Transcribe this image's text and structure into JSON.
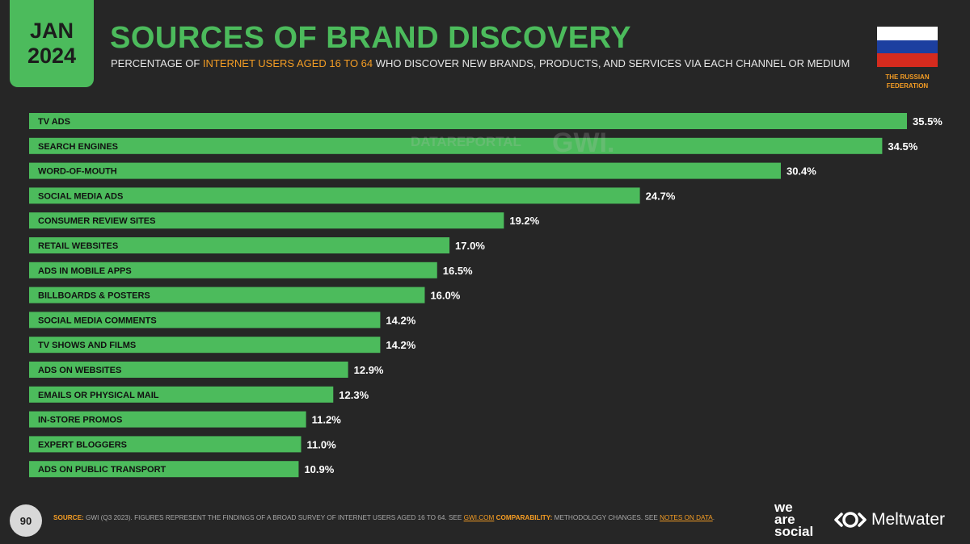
{
  "header": {
    "date_month": "JAN",
    "date_year": "2024",
    "title": "SOURCES OF BRAND DISCOVERY",
    "subtitle_pre": "PERCENTAGE OF ",
    "subtitle_highlight": "INTERNET USERS AGED 16 TO 64",
    "subtitle_post": " WHO DISCOVER NEW BRANDS, PRODUCTS, AND SERVICES VIA EACH CHANNEL OR MEDIUM"
  },
  "country": {
    "line1": "THE RUSSIAN",
    "line2": "FEDERATION",
    "flag_colors": [
      "#ffffff",
      "#1c3fa0",
      "#d52b1e"
    ]
  },
  "watermarks": {
    "datareportal": "DATAREPORTAL",
    "gwi": "GWI."
  },
  "colors": {
    "background": "#262626",
    "accent_green": "#4cbb5c",
    "accent_orange": "#f39c24",
    "label_text": "#111111",
    "value_text": "#ffffff"
  },
  "chart_data": {
    "type": "bar",
    "orientation": "horizontal",
    "categories": [
      "TV ADS",
      "SEARCH ENGINES",
      "WORD-OF-MOUTH",
      "SOCIAL MEDIA ADS",
      "CONSUMER REVIEW SITES",
      "RETAIL WEBSITES",
      "ADS IN MOBILE APPS",
      "BILLBOARDS & POSTERS",
      "SOCIAL MEDIA COMMENTS",
      "TV SHOWS AND FILMS",
      "ADS ON WEBSITES",
      "EMAILS OR PHYSICAL MAIL",
      "IN-STORE PROMOS",
      "EXPERT BLOGGERS",
      "ADS ON PUBLIC TRANSPORT"
    ],
    "values": [
      35.5,
      34.5,
      30.4,
      24.7,
      19.2,
      17.0,
      16.5,
      16.0,
      14.2,
      14.2,
      12.9,
      12.3,
      11.2,
      11.0,
      10.9
    ],
    "value_labels": [
      "35.5%",
      "34.5%",
      "30.4%",
      "24.7%",
      "19.2%",
      "17.0%",
      "16.5%",
      "16.0%",
      "14.2%",
      "14.2%",
      "12.9%",
      "12.3%",
      "11.2%",
      "11.0%",
      "10.9%"
    ],
    "xlim": [
      0,
      35.5
    ],
    "grid": false,
    "legend": "none"
  },
  "footer": {
    "page_number": "90",
    "source_label": "SOURCE:",
    "source_text": " GWI (Q3 2023). FIGURES REPRESENT THE FINDINGS OF A BROAD SURVEY OF INTERNET USERS AGED 16 TO 64. SEE ",
    "source_link": "GWI.COM",
    "comparability_label": " COMPARABILITY:",
    "comparability_text": " METHODOLOGY CHANGES. SEE ",
    "comparability_link": "NOTES ON DATA",
    "comparability_end": ".",
    "logo1_line1": "we",
    "logo1_line2": "are",
    "logo1_line3": "social",
    "logo2": "Meltwater"
  }
}
